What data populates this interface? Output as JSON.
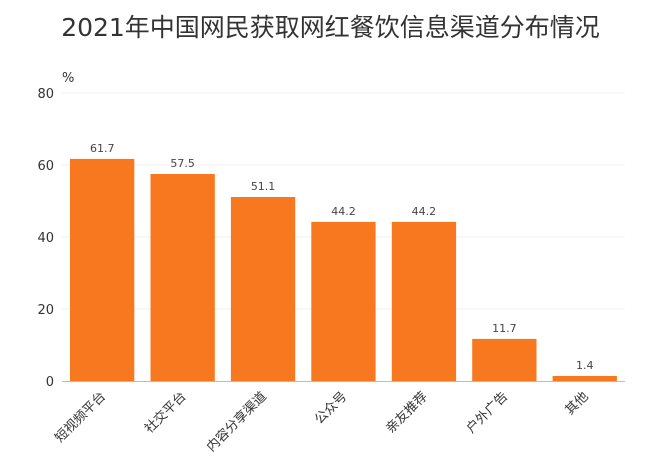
{
  "chart_data": {
    "type": "bar",
    "title": "2021年中国网民获取网红餐饮信息渠道分布情况",
    "y_unit": "%",
    "categories": [
      "短视频平台",
      "社交平台",
      "内容分享渠道",
      "公众号",
      "亲友推荐",
      "户外广告",
      "其他"
    ],
    "values": [
      61.7,
      57.5,
      51.1,
      44.2,
      44.2,
      11.7,
      1.4
    ],
    "data_labels": [
      "61.7",
      "57.5",
      "51.1",
      "44.2",
      "44.2",
      "11.7",
      "1.4"
    ],
    "ylim": [
      0,
      80
    ],
    "yticks": [
      0,
      20,
      40,
      60,
      80
    ],
    "bar_color": "#f7781f",
    "grid": true,
    "legend": "none"
  }
}
